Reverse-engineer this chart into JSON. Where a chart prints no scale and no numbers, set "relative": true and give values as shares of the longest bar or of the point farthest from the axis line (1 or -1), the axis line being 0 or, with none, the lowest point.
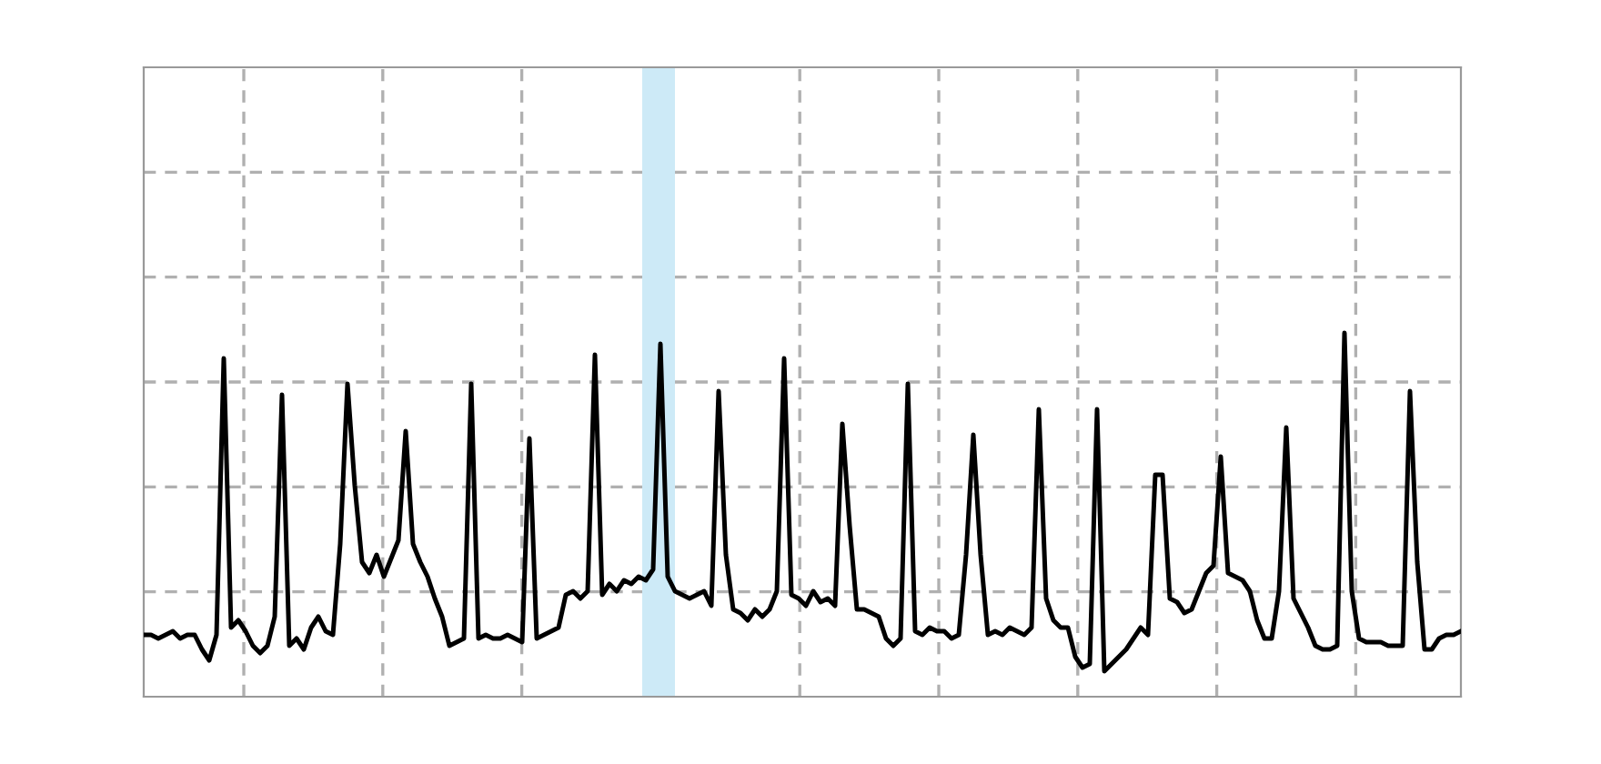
{
  "chart_data": {
    "type": "line",
    "relative": true,
    "grid": true,
    "tick_labels": false,
    "legend": false,
    "marker": "none",
    "line_style": "solid",
    "categories": [
      null,
      null,
      null,
      null,
      null,
      null,
      null,
      null,
      null,
      null,
      null,
      null,
      null,
      null,
      null,
      null,
      null,
      null,
      null,
      null,
      null,
      null,
      null,
      null,
      null,
      null,
      null,
      null,
      null,
      null,
      null,
      null,
      null,
      null,
      null,
      null,
      null,
      null,
      null,
      null,
      null,
      null,
      null,
      null,
      null,
      null,
      null,
      null,
      null,
      null,
      null,
      null,
      null,
      null,
      null,
      null,
      null,
      null,
      null,
      null,
      null,
      null,
      null,
      null,
      null,
      null,
      null,
      null,
      null,
      null,
      null,
      null,
      null,
      null,
      null,
      null,
      null,
      null,
      null,
      null,
      null,
      null,
      null,
      null,
      null,
      null,
      null,
      null,
      null,
      null,
      null,
      null,
      null,
      null,
      null,
      null,
      null,
      null,
      null,
      null,
      null,
      null,
      null,
      null,
      null,
      null,
      null,
      null,
      null,
      null,
      null,
      null,
      null,
      null,
      null,
      null,
      null,
      null,
      null,
      null,
      null,
      null,
      null,
      null,
      null,
      null,
      null,
      null,
      null,
      null,
      null,
      null,
      null,
      null,
      null,
      null,
      null,
      null,
      null,
      null,
      null,
      null,
      null,
      null,
      null,
      null,
      null,
      null,
      null,
      null,
      null,
      null,
      null,
      null,
      null,
      null,
      null,
      null,
      null,
      null,
      null,
      null,
      null,
      null,
      null,
      null,
      null,
      null,
      null,
      null,
      null,
      null,
      null,
      null,
      null,
      null,
      null,
      null,
      null,
      null,
      null,
      null
    ],
    "series": [
      {
        "color": "#000000",
        "values": [
          0.17,
          0.17,
          0.16,
          0.17,
          0.18,
          0.16,
          0.17,
          0.17,
          0.13,
          0.1,
          0.17,
          0.93,
          0.19,
          0.21,
          0.18,
          0.14,
          0.12,
          0.14,
          0.22,
          0.83,
          0.14,
          0.16,
          0.13,
          0.19,
          0.22,
          0.18,
          0.17,
          0.42,
          0.86,
          0.58,
          0.37,
          0.34,
          0.39,
          0.33,
          0.38,
          0.43,
          0.73,
          0.42,
          0.37,
          0.33,
          0.27,
          0.22,
          0.14,
          0.15,
          0.16,
          0.86,
          0.16,
          0.17,
          0.16,
          0.16,
          0.17,
          0.16,
          0.15,
          0.71,
          0.16,
          0.17,
          0.18,
          0.19,
          0.28,
          0.29,
          0.27,
          0.29,
          0.94,
          0.28,
          0.31,
          0.29,
          0.32,
          0.31,
          0.33,
          0.32,
          0.35,
          0.97,
          0.33,
          0.29,
          0.28,
          0.27,
          0.28,
          0.29,
          0.25,
          0.84,
          0.39,
          0.24,
          0.23,
          0.21,
          0.24,
          0.22,
          0.24,
          0.29,
          0.93,
          0.28,
          0.27,
          0.25,
          0.29,
          0.26,
          0.27,
          0.25,
          0.75,
          0.47,
          0.24,
          0.24,
          0.23,
          0.22,
          0.16,
          0.14,
          0.16,
          0.86,
          0.18,
          0.17,
          0.19,
          0.18,
          0.18,
          0.16,
          0.17,
          0.39,
          0.72,
          0.39,
          0.17,
          0.18,
          0.17,
          0.19,
          0.18,
          0.17,
          0.19,
          0.79,
          0.27,
          0.21,
          0.19,
          0.19,
          0.11,
          0.08,
          0.09,
          0.79,
          0.07,
          0.09,
          0.11,
          0.13,
          0.16,
          0.19,
          0.17,
          0.61,
          0.61,
          0.27,
          0.26,
          0.23,
          0.24,
          0.29,
          0.34,
          0.36,
          0.66,
          0.34,
          0.33,
          0.32,
          0.29,
          0.21,
          0.16,
          0.16,
          0.29,
          0.74,
          0.27,
          0.23,
          0.19,
          0.14,
          0.13,
          0.13,
          0.14,
          1.0,
          0.29,
          0.16,
          0.15,
          0.15,
          0.15,
          0.14,
          0.14,
          0.14,
          0.84,
          0.37,
          0.13,
          0.13,
          0.16,
          0.17,
          0.17,
          0.18
        ]
      }
    ]
  }
}
